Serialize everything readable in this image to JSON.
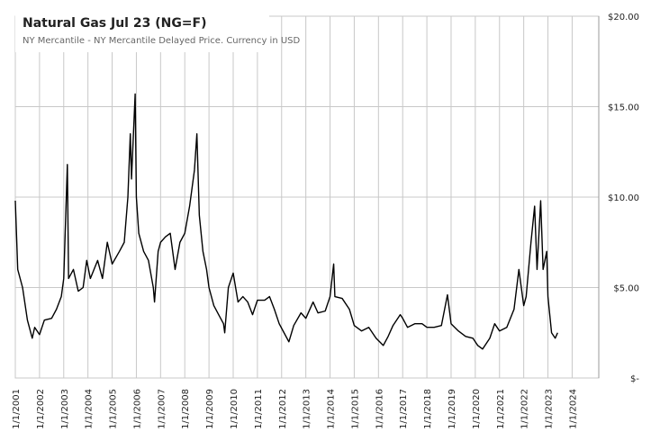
{
  "chart_data": {
    "type": "line",
    "title": "Natural Gas Jul 23 (NG=F)",
    "subtitle": "NY Mercantile - NY Mercantile Delayed Price. Currency in USD",
    "x": [
      2001.0,
      2001.1,
      2001.3,
      2001.5,
      2001.7,
      2001.8,
      2002.0,
      2002.2,
      2002.5,
      2002.7,
      2002.9,
      2003.0,
      2003.15,
      2003.2,
      2003.4,
      2003.6,
      2003.8,
      2003.95,
      2004.1,
      2004.4,
      2004.6,
      2004.8,
      2005.0,
      2005.3,
      2005.5,
      2005.65,
      2005.75,
      2005.8,
      2005.95,
      2006.0,
      2006.1,
      2006.3,
      2006.5,
      2006.7,
      2006.75,
      2006.9,
      2007.0,
      2007.2,
      2007.4,
      2007.6,
      2007.8,
      2008.0,
      2008.2,
      2008.4,
      2008.5,
      2008.6,
      2008.75,
      2008.9,
      2009.0,
      2009.2,
      2009.4,
      2009.6,
      2009.65,
      2009.8,
      2010.0,
      2010.2,
      2010.4,
      2010.6,
      2010.8,
      2011.0,
      2011.3,
      2011.5,
      2011.7,
      2011.9,
      2012.1,
      2012.3,
      2012.5,
      2012.8,
      2013.0,
      2013.3,
      2013.5,
      2013.8,
      2014.0,
      2014.15,
      2014.2,
      2014.5,
      2014.8,
      2015.0,
      2015.3,
      2015.6,
      2015.9,
      2016.2,
      2016.4,
      2016.6,
      2016.9,
      2017.0,
      2017.2,
      2017.5,
      2017.8,
      2018.0,
      2018.3,
      2018.6,
      2018.85,
      2019.0,
      2019.3,
      2019.6,
      2019.9,
      2020.1,
      2020.3,
      2020.6,
      2020.8,
      2021.0,
      2021.3,
      2021.6,
      2021.8,
      2022.0,
      2022.1,
      2022.3,
      2022.45,
      2022.55,
      2022.7,
      2022.8,
      2022.95,
      2023.0,
      2023.15,
      2023.3,
      2023.4
    ],
    "series": [
      {
        "name": "NG=F",
        "color": "#000000",
        "values": [
          9.8,
          6,
          5,
          3.2,
          2.2,
          2.8,
          2.4,
          3.2,
          3.3,
          3.8,
          4.5,
          5.5,
          11.8,
          5.5,
          6,
          4.8,
          5,
          6.5,
          5.5,
          6.5,
          5.5,
          7.5,
          6.3,
          7,
          7.5,
          10,
          13.5,
          11,
          15.7,
          10,
          8,
          7,
          6.5,
          5,
          4.2,
          7,
          7.5,
          7.8,
          8,
          6,
          7.5,
          8,
          9.5,
          11.5,
          13.5,
          9,
          7,
          6,
          5,
          4,
          3.5,
          3,
          2.5,
          5,
          5.8,
          4.2,
          4.5,
          4.2,
          3.5,
          4.3,
          4.3,
          4.5,
          3.8,
          3,
          2.5,
          2,
          2.9,
          3.6,
          3.3,
          4.2,
          3.6,
          3.7,
          4.5,
          6.3,
          4.5,
          4.4,
          3.8,
          2.9,
          2.6,
          2.8,
          2.2,
          1.8,
          2.3,
          2.9,
          3.5,
          3.3,
          2.8,
          3,
          3,
          2.8,
          2.8,
          2.9,
          4.6,
          3,
          2.6,
          2.3,
          2.2,
          1.8,
          1.6,
          2.2,
          3,
          2.6,
          2.8,
          3.8,
          6,
          4,
          4.5,
          7.5,
          9.5,
          6,
          9.8,
          6,
          7,
          4.5,
          2.5,
          2.2,
          2.5
        ]
      }
    ],
    "xlim": [
      2001,
      2025.1
    ],
    "xticks": [
      {
        "value": 2001,
        "label": "1/1/2001"
      },
      {
        "value": 2002,
        "label": "1/1/2002"
      },
      {
        "value": 2003,
        "label": "1/1/2003"
      },
      {
        "value": 2004,
        "label": "1/1/2004"
      },
      {
        "value": 2005,
        "label": "1/1/2005"
      },
      {
        "value": 2006,
        "label": "1/1/2006"
      },
      {
        "value": 2007,
        "label": "1/1/2007"
      },
      {
        "value": 2008,
        "label": "1/1/2008"
      },
      {
        "value": 2009,
        "label": "1/1/2009"
      },
      {
        "value": 2010,
        "label": "1/1/2010"
      },
      {
        "value": 2011,
        "label": "1/1/2011"
      },
      {
        "value": 2012,
        "label": "1/1/2012"
      },
      {
        "value": 2013,
        "label": "1/1/2013"
      },
      {
        "value": 2014,
        "label": "1/1/2014"
      },
      {
        "value": 2015,
        "label": "1/1/2015"
      },
      {
        "value": 2016,
        "label": "1/1/2016"
      },
      {
        "value": 2017,
        "label": "1/1/2017"
      },
      {
        "value": 2018,
        "label": "1/1/2018"
      },
      {
        "value": 2019,
        "label": "1/1/2019"
      },
      {
        "value": 2020,
        "label": "1/1/2020"
      },
      {
        "value": 2021,
        "label": "1/1/2021"
      },
      {
        "value": 2022,
        "label": "1/1/2022"
      },
      {
        "value": 2023,
        "label": "1/1/2023"
      },
      {
        "value": 2024,
        "label": "1/1/2024"
      }
    ],
    "ylim": [
      0,
      20
    ],
    "yticks": [
      {
        "value": 0,
        "label": "$-"
      },
      {
        "value": 5,
        "label": "$5.00"
      },
      {
        "value": 10,
        "label": "$10.00"
      },
      {
        "value": 15,
        "label": "$15.00"
      },
      {
        "value": 20,
        "label": "$20.00"
      }
    ],
    "grid": true
  }
}
